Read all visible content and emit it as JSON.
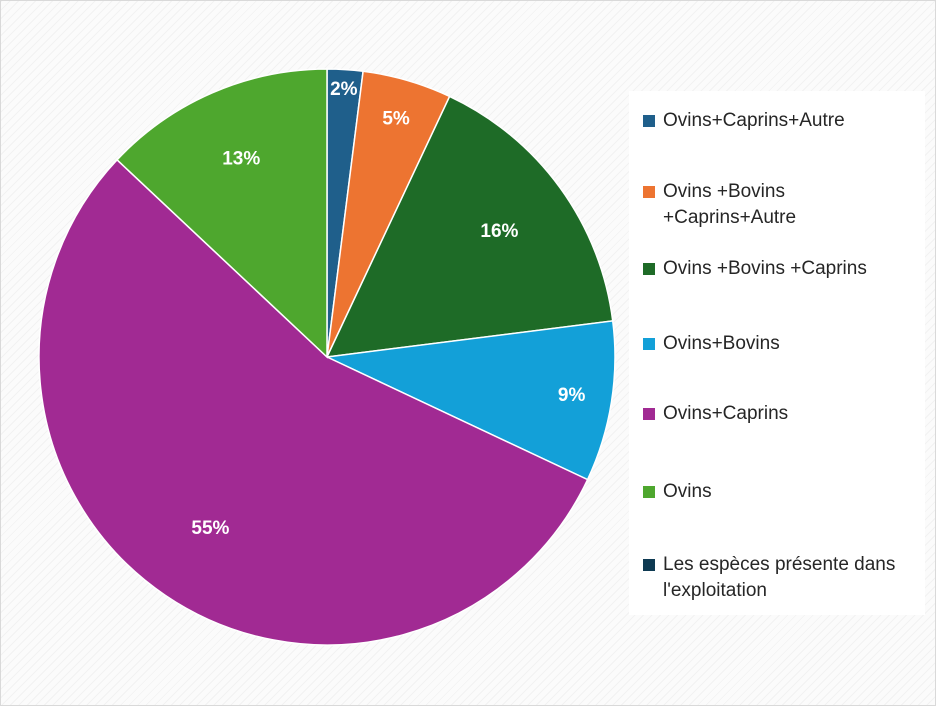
{
  "chart_data": {
    "type": "pie",
    "slices": [
      {
        "label": "Ovins+Caprins+Autre",
        "value": 2,
        "value_label": "2%",
        "color": "#1f5f8b"
      },
      {
        "label": "Ovins +Bovins +Caprins+Autre",
        "value": 5,
        "value_label": "5%",
        "color": "#ed7431"
      },
      {
        "label": "Ovins +Bovins +Caprins",
        "value": 16,
        "value_label": "16%",
        "color": "#1e6b27"
      },
      {
        "label": "Ovins+Bovins",
        "value": 9,
        "value_label": "9%",
        "color": "#13a0d8"
      },
      {
        "label": "Ovins+Caprins",
        "value": 55,
        "value_label": "55%",
        "color": "#a12a93"
      },
      {
        "label": "Ovins",
        "value": 13,
        "value_label": "13%",
        "color": "#4ea72e"
      }
    ],
    "legend": {
      "placement": "right",
      "entries": [
        {
          "text": "Ovins+Caprins+Autre",
          "color": "#1f5f8b"
        },
        {
          "text": "Ovins +Bovins +Caprins+Autre",
          "color": "#ed7431"
        },
        {
          "text": "Ovins +Bovins +Caprins",
          "color": "#1e6b27"
        },
        {
          "text": "Ovins+Bovins",
          "color": "#13a0d8"
        },
        {
          "text": "Ovins+Caprins",
          "color": "#a12a93"
        },
        {
          "text": "Ovins",
          "color": "#4ea72e"
        },
        {
          "text": " Les espèces présente dans l'exploitation",
          "color": "#0e3a52"
        }
      ]
    }
  }
}
